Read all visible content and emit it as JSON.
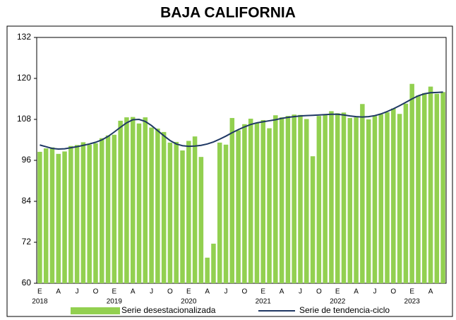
{
  "chart_data": {
    "type": "bar",
    "title": "BAJA CALIFORNIA",
    "categories": [
      "E",
      null,
      null,
      "A",
      null,
      null,
      "J",
      null,
      null,
      "O",
      null,
      null,
      "E",
      null,
      null,
      "A",
      null,
      null,
      "J",
      null,
      null,
      "O",
      null,
      null,
      "E",
      null,
      null,
      "A",
      null,
      null,
      "J",
      null,
      null,
      "O",
      null,
      null,
      "E",
      null,
      null,
      "A",
      null,
      null,
      "J",
      null,
      null,
      "O",
      null,
      null,
      "E",
      null,
      null,
      "A",
      null,
      null,
      "J",
      null,
      null,
      "O",
      null,
      null,
      "E",
      null,
      null,
      "A",
      null,
      null
    ],
    "category_years": [
      "2018",
      null,
      null,
      null,
      null,
      null,
      null,
      null,
      null,
      null,
      null,
      null,
      "2019",
      null,
      null,
      null,
      null,
      null,
      null,
      null,
      null,
      null,
      null,
      null,
      "2020",
      null,
      null,
      null,
      null,
      null,
      null,
      null,
      null,
      null,
      null,
      null,
      "2021",
      null,
      null,
      null,
      null,
      null,
      null,
      null,
      null,
      null,
      null,
      null,
      "2022",
      null,
      null,
      null,
      null,
      null,
      null,
      null,
      null,
      null,
      null,
      null,
      "2023",
      null,
      null,
      null,
      null,
      null
    ],
    "series": [
      {
        "name": "Serie desestacionalizada",
        "type": "bar",
        "color": "#92d050",
        "values": [
          98.5,
          99.5,
          99.8,
          97.9,
          98.6,
          100.2,
          100.5,
          101.3,
          100.6,
          101.0,
          102.5,
          103.3,
          103.5,
          107.6,
          108.6,
          108.7,
          106.8,
          108.6,
          105.6,
          105.3,
          104.3,
          101.2,
          101.4,
          98.9,
          101.7,
          103.0,
          97.0,
          67.5,
          71.6,
          101.2,
          100.6,
          108.4,
          104.8,
          106.6,
          108.2,
          107.0,
          107.8,
          105.4,
          109.2,
          108.6,
          109.0,
          109.4,
          109.3,
          108.1,
          97.2,
          109.0,
          109.5,
          110.4,
          109.8,
          110.0,
          108.4,
          108.6,
          112.5,
          108.0,
          109.0,
          109.5,
          110.1,
          111.2,
          109.6,
          112.6,
          118.4,
          115.0,
          115.7,
          117.6,
          115.5,
          116.0
        ]
      },
      {
        "name": "Serie de tendencia-ciclo",
        "type": "line",
        "color": "#1f3864",
        "values": [
          100.5,
          100.0,
          99.5,
          99.3,
          99.4,
          99.7,
          100.0,
          100.4,
          100.8,
          101.3,
          102.0,
          103.0,
          104.3,
          105.7,
          107.0,
          107.9,
          108.0,
          107.4,
          106.2,
          104.7,
          103.2,
          101.8,
          100.8,
          100.3,
          100.1,
          100.2,
          100.4,
          100.8,
          101.4,
          102.2,
          103.1,
          104.1,
          105.0,
          105.8,
          106.5,
          107.0,
          107.3,
          107.6,
          107.9,
          108.3,
          108.6,
          108.8,
          109.0,
          109.1,
          109.2,
          109.3,
          109.4,
          109.5,
          109.5,
          109.3,
          109.0,
          108.8,
          108.7,
          108.8,
          109.1,
          109.6,
          110.3,
          111.1,
          112.0,
          113.0,
          114.0,
          114.9,
          115.5,
          115.8,
          115.9,
          116.0
        ]
      }
    ],
    "ylim": [
      60,
      132
    ],
    "yticks": [
      60,
      72,
      84,
      96,
      108,
      120,
      132
    ],
    "grid": false
  }
}
